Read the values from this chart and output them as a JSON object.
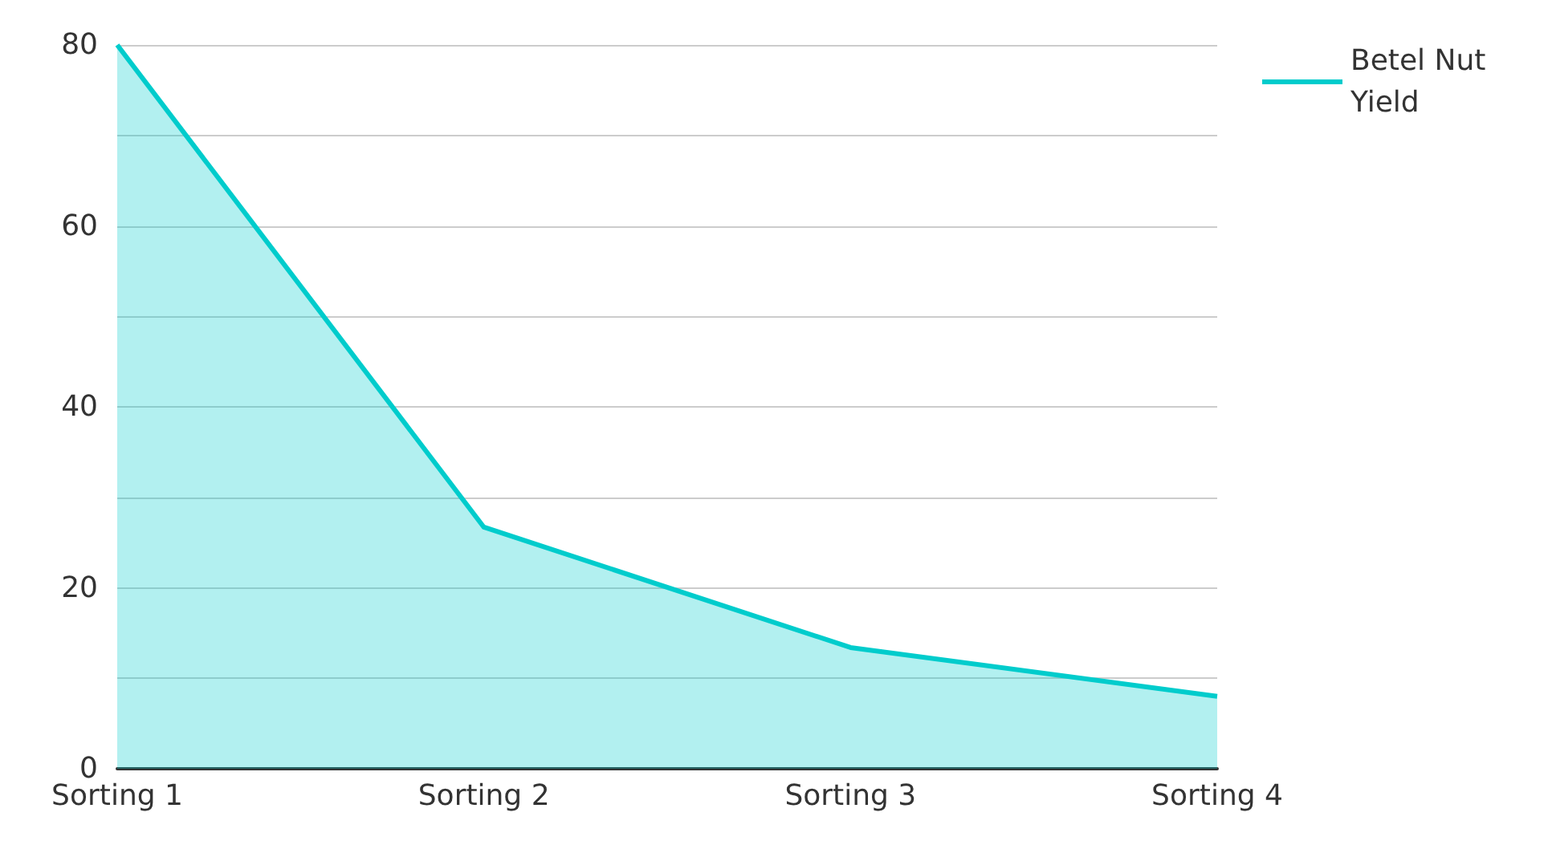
{
  "chart_data": {
    "type": "area",
    "categories": [
      "Sorting 1",
      "Sorting 2",
      "Sorting 3",
      "Sorting 4"
    ],
    "series": [
      {
        "name": "Betel Nut Yield",
        "color": "#00cccc",
        "values": [
          80,
          26.7,
          13.4,
          8
        ]
      }
    ],
    "ylim": [
      0,
      80
    ],
    "yticks": [
      0,
      {
        "value": 10,
        "label": null
      },
      20,
      {
        "value": 30,
        "label": null
      },
      40,
      {
        "value": 50,
        "label": null
      },
      60,
      {
        "value": 70,
        "label": null
      },
      80
    ],
    "grid": "y",
    "legend": "top right"
  }
}
